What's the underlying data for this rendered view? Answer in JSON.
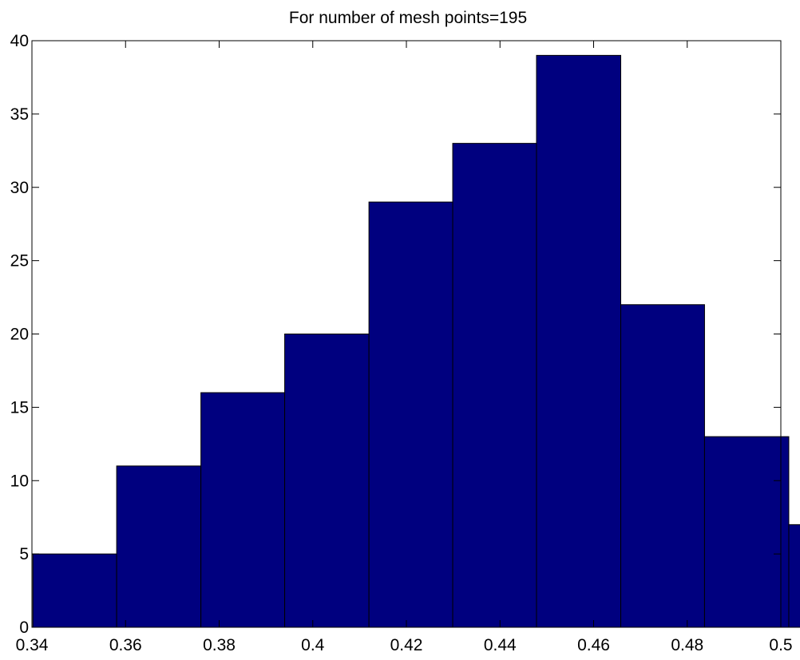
{
  "chart_data": {
    "type": "bar",
    "title": "For number of mesh points=195",
    "xlabel": "",
    "ylabel": "",
    "bins": [
      {
        "x0": 0.3402,
        "x1": 0.3581,
        "value": 5
      },
      {
        "x0": 0.3581,
        "x1": 0.3761,
        "value": 11
      },
      {
        "x0": 0.3761,
        "x1": 0.394,
        "value": 16
      },
      {
        "x0": 0.394,
        "x1": 0.412,
        "value": 20
      },
      {
        "x0": 0.412,
        "x1": 0.4299,
        "value": 29
      },
      {
        "x0": 0.4299,
        "x1": 0.4478,
        "value": 33
      },
      {
        "x0": 0.4478,
        "x1": 0.4658,
        "value": 39
      },
      {
        "x0": 0.4658,
        "x1": 0.4837,
        "value": 22
      },
      {
        "x0": 0.4837,
        "x1": 0.5017,
        "value": 13
      },
      {
        "x0": 0.5017,
        "x1": 0.5196,
        "value": 7
      }
    ],
    "xlim": [
      0.34,
      0.5
    ],
    "ylim": [
      0,
      40
    ],
    "xticks": [
      0.34,
      0.36,
      0.38,
      0.4,
      0.42,
      0.44,
      0.46,
      0.48,
      0.5
    ],
    "xtick_labels": [
      "0.34",
      "0.36",
      "0.38",
      "0.4",
      "0.42",
      "0.44",
      "0.46",
      "0.48",
      "0.5"
    ],
    "yticks": [
      0,
      5,
      10,
      15,
      20,
      25,
      30,
      35,
      40
    ],
    "ytick_labels": [
      "0",
      "5",
      "10",
      "15",
      "20",
      "25",
      "30",
      "35",
      "40"
    ],
    "grid": false,
    "colors": {
      "bar_fill": "#00007f",
      "bar_edge": "#000000",
      "axes": "#000000",
      "background": "#ffffff"
    }
  }
}
